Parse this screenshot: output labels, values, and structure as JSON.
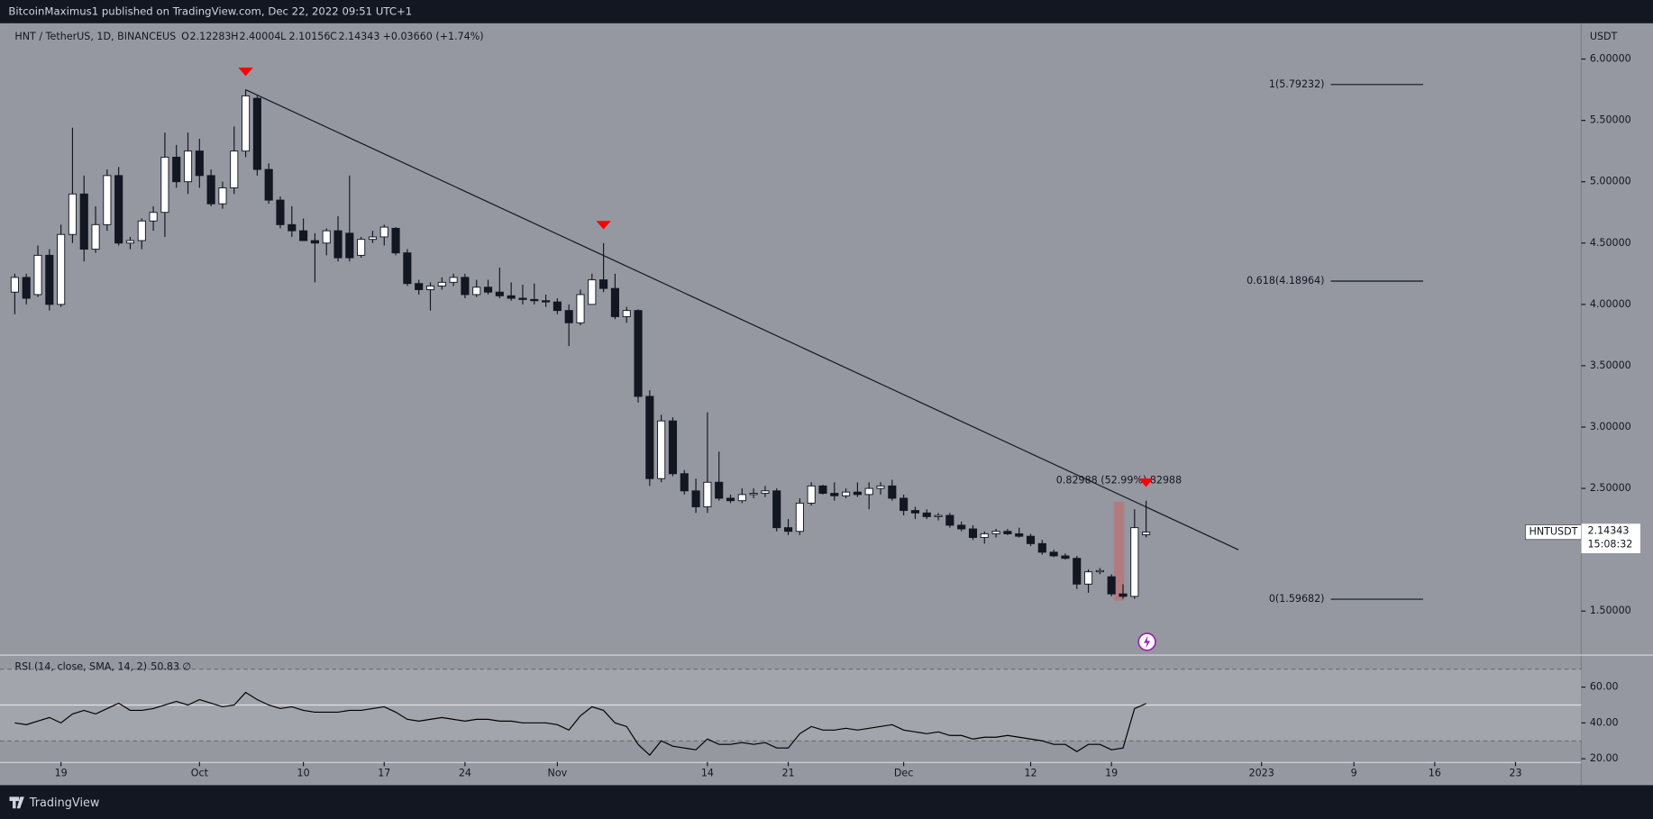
{
  "header": {
    "publisher": "BitcoinMaximus1 published on TradingView.com, Dec 22, 2022 09:51 UTC+1"
  },
  "footer": {
    "brand": "TradingView"
  },
  "chart_data": [
    {
      "type": "candlestick",
      "title": "HNT / TetherUS, 1D, BINANCEUS",
      "currency": "USDT",
      "symbol": "HNTUSDT",
      "countdown": "15:08:32",
      "change": "+0.03660 (+1.74%)",
      "ohlc_keys": [
        "O",
        "H",
        "L",
        "C"
      ],
      "up_color": "#ffffff",
      "down_color": "#131722",
      "open": [
        4.1,
        4.22,
        4.08,
        4.4,
        4.0,
        4.57,
        4.9,
        4.45,
        4.65,
        5.05,
        4.5,
        4.52,
        4.68,
        4.75,
        5.2,
        5.0,
        5.25,
        5.05,
        4.82,
        4.95,
        5.25,
        5.68,
        5.1,
        4.85,
        4.65,
        4.6,
        4.52,
        4.5,
        4.6,
        4.58,
        4.4,
        4.53,
        4.55,
        4.62,
        4.42,
        4.17,
        4.12,
        4.15,
        4.18,
        4.22,
        4.08,
        4.14,
        4.1,
        4.07,
        4.05,
        4.04,
        4.03,
        4.02,
        3.95,
        3.85,
        4.0,
        4.2,
        4.13,
        3.9,
        3.95,
        3.25,
        2.58,
        3.05,
        2.62,
        2.48,
        2.35,
        2.55,
        2.42,
        2.4,
        2.45,
        2.46,
        2.48,
        2.18,
        2.15,
        2.38,
        2.52,
        2.46,
        2.44,
        2.47,
        2.45,
        2.5,
        2.52,
        2.42,
        2.32,
        2.3,
        2.27,
        2.28,
        2.2,
        2.17,
        2.1,
        2.13,
        2.15,
        2.13,
        2.11,
        2.05,
        1.98,
        1.95,
        1.93,
        1.72,
        1.82,
        1.78,
        1.64,
        1.62,
        2.12283
      ],
      "high": [
        4.25,
        4.25,
        4.48,
        4.45,
        4.65,
        5.44,
        5.05,
        4.8,
        5.1,
        5.12,
        4.55,
        4.7,
        4.8,
        5.4,
        5.3,
        5.4,
        5.35,
        5.1,
        5.0,
        5.45,
        5.75,
        5.7,
        5.15,
        4.88,
        4.8,
        4.7,
        4.58,
        4.62,
        4.72,
        5.05,
        4.55,
        4.6,
        4.65,
        4.63,
        4.45,
        4.2,
        4.18,
        4.22,
        4.25,
        4.25,
        4.2,
        4.2,
        4.3,
        4.18,
        4.16,
        4.17,
        4.08,
        4.05,
        4.0,
        4.12,
        4.25,
        4.5,
        4.25,
        3.98,
        3.96,
        3.3,
        3.1,
        3.08,
        2.65,
        2.58,
        3.12,
        2.8,
        2.45,
        2.5,
        2.5,
        2.52,
        2.5,
        2.25,
        2.42,
        2.55,
        2.53,
        2.55,
        2.5,
        2.55,
        2.55,
        2.55,
        2.57,
        2.45,
        2.35,
        2.33,
        2.3,
        2.3,
        2.23,
        2.2,
        2.15,
        2.17,
        2.17,
        2.18,
        2.13,
        2.08,
        2.0,
        1.97,
        1.95,
        1.84,
        1.85,
        1.8,
        1.72,
        2.33,
        2.40004
      ],
      "low": [
        3.92,
        4.0,
        4.06,
        3.95,
        3.98,
        4.5,
        4.35,
        4.42,
        4.6,
        4.48,
        4.45,
        4.45,
        4.6,
        4.55,
        4.95,
        4.9,
        4.95,
        4.8,
        4.78,
        4.9,
        5.2,
        5.05,
        4.82,
        4.62,
        4.55,
        4.52,
        4.18,
        4.4,
        4.35,
        4.35,
        4.38,
        4.5,
        4.48,
        4.4,
        4.15,
        4.08,
        3.95,
        4.12,
        4.15,
        4.05,
        4.06,
        4.08,
        4.05,
        4.03,
        4.0,
        4.0,
        3.98,
        3.92,
        3.66,
        3.83,
        4.0,
        4.1,
        3.88,
        3.85,
        3.2,
        2.52,
        2.55,
        2.6,
        2.45,
        2.3,
        2.3,
        2.4,
        2.38,
        2.38,
        2.42,
        2.43,
        2.15,
        2.12,
        2.12,
        2.36,
        2.45,
        2.4,
        2.42,
        2.43,
        2.33,
        2.45,
        2.4,
        2.28,
        2.25,
        2.25,
        2.24,
        2.18,
        2.15,
        2.08,
        2.05,
        2.1,
        2.12,
        2.1,
        2.03,
        1.96,
        1.94,
        1.92,
        1.68,
        1.65,
        1.8,
        1.62,
        1.6,
        1.6,
        2.10156
      ],
      "close": [
        4.22,
        4.05,
        4.4,
        4.0,
        4.57,
        4.9,
        4.45,
        4.65,
        5.05,
        4.5,
        4.52,
        4.68,
        4.75,
        5.2,
        5.0,
        5.25,
        5.05,
        4.82,
        4.95,
        5.25,
        5.7,
        5.1,
        4.85,
        4.65,
        4.6,
        4.52,
        4.5,
        4.6,
        4.38,
        4.38,
        4.53,
        4.55,
        4.63,
        4.42,
        4.17,
        4.12,
        4.15,
        4.18,
        4.22,
        4.08,
        4.14,
        4.1,
        4.07,
        4.05,
        4.04,
        4.03,
        4.02,
        3.95,
        3.85,
        4.08,
        4.2,
        4.13,
        3.9,
        3.95,
        3.25,
        2.58,
        3.05,
        2.62,
        2.48,
        2.35,
        2.55,
        2.42,
        2.4,
        2.45,
        2.46,
        2.48,
        2.18,
        2.15,
        2.38,
        2.52,
        2.46,
        2.44,
        2.47,
        2.45,
        2.5,
        2.52,
        2.42,
        2.32,
        2.3,
        2.27,
        2.28,
        2.2,
        2.17,
        2.1,
        2.13,
        2.15,
        2.13,
        2.11,
        2.05,
        1.98,
        1.95,
        1.93,
        1.72,
        1.82,
        1.83,
        1.64,
        1.62,
        2.18,
        2.14343
      ],
      "xlim": [
        -0.55,
        135.7
      ],
      "xticks": [
        {
          "value": 4,
          "label": "19"
        },
        {
          "value": 16,
          "label": "Oct"
        },
        {
          "value": 25,
          "label": "10"
        },
        {
          "value": 32,
          "label": "17"
        },
        {
          "value": 39,
          "label": "24"
        },
        {
          "value": 47,
          "label": "Nov"
        },
        {
          "value": 60,
          "label": "14"
        },
        {
          "value": 67,
          "label": "21"
        },
        {
          "value": 77,
          "label": "Dec"
        },
        {
          "value": 88,
          "label": "12"
        },
        {
          "value": 95,
          "label": "19"
        },
        {
          "value": 108,
          "label": "2023"
        },
        {
          "value": 116,
          "label": "9"
        },
        {
          "value": 123,
          "label": "16"
        },
        {
          "value": 130,
          "label": "23"
        }
      ],
      "ylim": [
        1.146,
        6.24
      ],
      "yticks": [
        {
          "value": 1.5,
          "label": "1.50000"
        },
        {
          "value": 2,
          "label": "2.00000"
        },
        {
          "value": 2.5,
          "label": "2.50000"
        },
        {
          "value": 3,
          "label": "3.00000"
        },
        {
          "value": 3.5,
          "label": "3.50000"
        },
        {
          "value": 4,
          "label": "4.00000"
        },
        {
          "value": 4.5,
          "label": "4.50000"
        },
        {
          "value": 5,
          "label": "5.00000"
        },
        {
          "value": 5.5,
          "label": "5.50000"
        },
        {
          "value": 6,
          "label": "6.00000"
        }
      ],
      "trendline": [
        [
          20,
          5.75
        ],
        [
          106,
          2.0
        ]
      ],
      "peak_markers": [
        20,
        51,
        98
      ],
      "marker_color": "#ff0000",
      "fib_range": [
        114,
        122
      ],
      "fib_levels": [
        {
          "value": 5.79232,
          "label": "1(5.79232)"
        },
        {
          "value": 4.18964,
          "label": "0.618(4.18964)"
        },
        {
          "value": 1.59682,
          "label": "0(1.59682)"
        }
      ],
      "measure": {
        "x": [
          95.2,
          96.1
        ],
        "y": [
          1.585,
          2.39
        ],
        "label": "0.82988 (52.99%) 82988"
      }
    },
    {
      "type": "line",
      "title": "RSI (14, close, SMA, 14, 2)",
      "na_symbol": "∅",
      "color": "#000000",
      "values": [
        40,
        39,
        41,
        43,
        40,
        45,
        47,
        45,
        48,
        51,
        47,
        47,
        48,
        50,
        52,
        50,
        53,
        51,
        49,
        50,
        57,
        53,
        50,
        48,
        49,
        47,
        46,
        46,
        46,
        47,
        47,
        48,
        49,
        46,
        42,
        41,
        42,
        43,
        42,
        41,
        42,
        42,
        41,
        41,
        40,
        40,
        40,
        39,
        36,
        44,
        49,
        47,
        40,
        38,
        28,
        22,
        30,
        27,
        26,
        25,
        31,
        28,
        28,
        29,
        28,
        29,
        26,
        26,
        34,
        38,
        36,
        36,
        37,
        36,
        37,
        38,
        39,
        36,
        35,
        34,
        35,
        33,
        33,
        31,
        32,
        32,
        33,
        32,
        31,
        30,
        28,
        28,
        24,
        28,
        28,
        25,
        26,
        48,
        50.83
      ],
      "ylim": [
        18.2,
        77.6
      ],
      "yticks": [
        {
          "value": 20,
          "label": "20.00"
        },
        {
          "value": 40,
          "label": "40.00"
        },
        {
          "value": 60,
          "label": "60.00"
        }
      ],
      "band": [
        30,
        70
      ],
      "midline": 50
    }
  ]
}
